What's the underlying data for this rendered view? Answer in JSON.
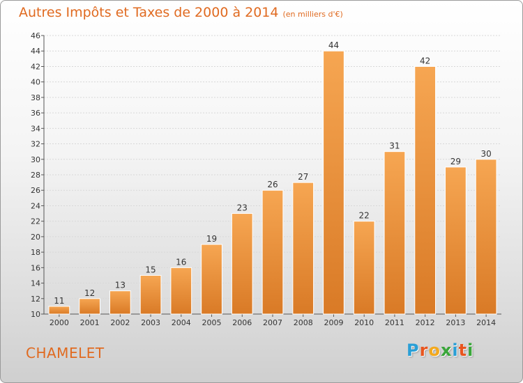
{
  "title": {
    "main": "Autres Impôts et Taxes de 2000 à 2014",
    "unit": "(en milliers d'€)"
  },
  "commune": "CHAMELET",
  "logo": {
    "text": "Proxiti",
    "colors": [
      "#2a9fd6",
      "#e8551e",
      "#f3a91d",
      "#3aa63a",
      "#2a9fd6",
      "#e8551e",
      "#3aa63a"
    ]
  },
  "colors": {
    "bar_light": "#f6a652",
    "bar_dark": "#d97a26",
    "accent": "#e06a20"
  },
  "chart_data": {
    "type": "bar",
    "categories": [
      "2000",
      "2001",
      "2002",
      "2003",
      "2004",
      "2005",
      "2006",
      "2007",
      "2008",
      "2009",
      "2010",
      "2011",
      "2012",
      "2013",
      "2014"
    ],
    "values": [
      11,
      12,
      13,
      15,
      16,
      19,
      23,
      26,
      27,
      44,
      22,
      31,
      42,
      29,
      30
    ],
    "ylim": [
      10,
      46
    ],
    "yticks": [
      10,
      12,
      14,
      16,
      18,
      20,
      22,
      24,
      26,
      28,
      30,
      32,
      34,
      36,
      38,
      40,
      42,
      44,
      46
    ],
    "grid": true
  }
}
